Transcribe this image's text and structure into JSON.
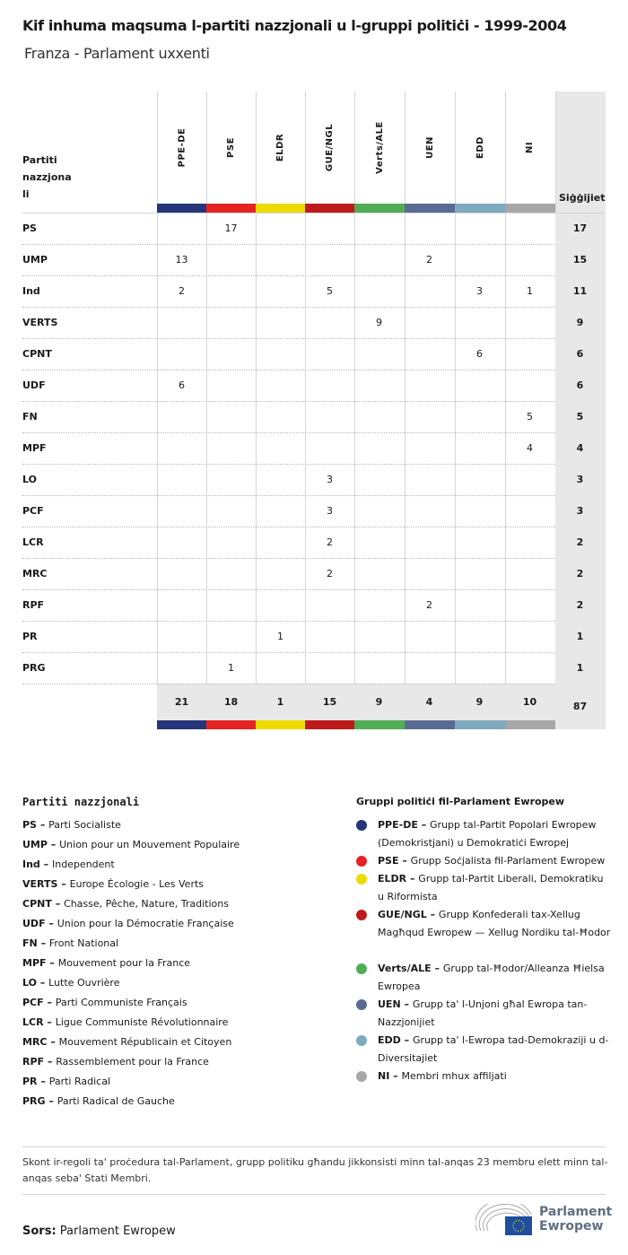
{
  "title": "Kif inhuma maqsuma l-partiti nazzjonali u l-gruppi politiċi - 1999-2004",
  "subtitle": "Franza - Parlament uxxenti",
  "table": {
    "row_header": "Partiti nazzjona li",
    "total_header": "Siġġijiet",
    "groups": [
      {
        "code": "PPE-DE",
        "color": "#263479"
      },
      {
        "code": "PSE",
        "color": "#e42322"
      },
      {
        "code": "ELDR",
        "color": "#ecdb00"
      },
      {
        "code": "GUE/NGL",
        "color": "#be1a1c"
      },
      {
        "code": "Verts/ALE",
        "color": "#50ad56"
      },
      {
        "code": "UEN",
        "color": "#5a6b93"
      },
      {
        "code": "EDD",
        "color": "#7ea9bf"
      },
      {
        "code": "NI",
        "color": "#a7a7a7"
      }
    ],
    "rows": [
      {
        "party": "PS",
        "values": [
          "",
          "17",
          "",
          "",
          "",
          "",
          "",
          ""
        ],
        "total": "17"
      },
      {
        "party": "UMP",
        "values": [
          "13",
          "",
          "",
          "",
          "",
          "2",
          "",
          ""
        ],
        "total": "15"
      },
      {
        "party": "Ind",
        "values": [
          "2",
          "",
          "",
          "5",
          "",
          "",
          "3",
          "1"
        ],
        "total": "11"
      },
      {
        "party": "VERTS",
        "values": [
          "",
          "",
          "",
          "",
          "9",
          "",
          "",
          ""
        ],
        "total": "9"
      },
      {
        "party": "CPNT",
        "values": [
          "",
          "",
          "",
          "",
          "",
          "",
          "6",
          ""
        ],
        "total": "6"
      },
      {
        "party": "UDF",
        "values": [
          "6",
          "",
          "",
          "",
          "",
          "",
          "",
          ""
        ],
        "total": "6"
      },
      {
        "party": "FN",
        "values": [
          "",
          "",
          "",
          "",
          "",
          "",
          "",
          "5"
        ],
        "total": "5"
      },
      {
        "party": "MPF",
        "values": [
          "",
          "",
          "",
          "",
          "",
          "",
          "",
          "4"
        ],
        "total": "4"
      },
      {
        "party": "LO",
        "values": [
          "",
          "",
          "",
          "3",
          "",
          "",
          "",
          ""
        ],
        "total": "3"
      },
      {
        "party": "PCF",
        "values": [
          "",
          "",
          "",
          "3",
          "",
          "",
          "",
          ""
        ],
        "total": "3"
      },
      {
        "party": "LCR",
        "values": [
          "",
          "",
          "",
          "2",
          "",
          "",
          "",
          ""
        ],
        "total": "2"
      },
      {
        "party": "MRC",
        "values": [
          "",
          "",
          "",
          "2",
          "",
          "",
          "",
          ""
        ],
        "total": "2"
      },
      {
        "party": "RPF",
        "values": [
          "",
          "",
          "",
          "",
          "",
          "2",
          "",
          ""
        ],
        "total": "2"
      },
      {
        "party": "PR",
        "values": [
          "",
          "",
          "1",
          "",
          "",
          "",
          "",
          ""
        ],
        "total": "1"
      },
      {
        "party": "PRG",
        "values": [
          "",
          "1",
          "",
          "",
          "",
          "",
          "",
          ""
        ],
        "total": "1"
      }
    ],
    "column_totals": [
      "21",
      "18",
      "1",
      "15",
      "9",
      "4",
      "9",
      "10"
    ],
    "grand_total": "87"
  },
  "legend_parties": {
    "title": "Partiti nazzjonali",
    "items": [
      {
        "code": "PS",
        "name": "Parti Socialiste"
      },
      {
        "code": "UMP",
        "name": "Union pour un Mouvement Populaire"
      },
      {
        "code": "Ind",
        "name": "Independent"
      },
      {
        "code": "VERTS",
        "name": "Europe Écologie - Les Verts"
      },
      {
        "code": "CPNT",
        "name": "Chasse, Pêche, Nature, Traditions"
      },
      {
        "code": "UDF",
        "name": "Union pour la Démocratie Française"
      },
      {
        "code": "FN",
        "name": "Front National"
      },
      {
        "code": "MPF",
        "name": "Mouvement pour la France"
      },
      {
        "code": "LO",
        "name": "Lutte Ouvrière"
      },
      {
        "code": "PCF",
        "name": "Parti Communiste Français"
      },
      {
        "code": "LCR",
        "name": "Ligue Communiste Révolutionnaire"
      },
      {
        "code": "MRC",
        "name": "Mouvement Républicain et Citoyen"
      },
      {
        "code": "RPF",
        "name": "Rassemblement pour la France"
      },
      {
        "code": "PR",
        "name": "Parti Radical"
      },
      {
        "code": "PRG",
        "name": "Parti Radical de Gauche"
      }
    ]
  },
  "legend_groups": {
    "title": "Gruppi politiċi fil-Parlament Ewropew",
    "items": [
      {
        "code": "PPE-DE",
        "name": "Grupp tal-Partit Popolari Ewropew (Demokristjani) u Demokratiċi Ewropej"
      },
      {
        "code": "PSE",
        "name": "Grupp Soċjalista fil-Parlament Ewropew"
      },
      {
        "code": "ELDR",
        "name": "Grupp tal-Partit Liberali, Demokratiku u Riformista"
      },
      {
        "code": "GUE/NGL",
        "name": "Grupp Konfederali tax-Xellug Magħqud Ewropew — Xellug Nordiku tal-Ħodor"
      },
      {
        "code": "Verts/ALE",
        "name": "Grupp tal-Ħodor/Alleanza Ħielsa Ewropea"
      },
      {
        "code": "UEN",
        "name": "Grupp ta' l-Unjoni għal Ewropa tan-Nazzjonijiet"
      },
      {
        "code": "EDD",
        "name": "Grupp ta' l-Ewropa tad-Demokraziji u d-Diversitajiet"
      },
      {
        "code": "NI",
        "name": "Membri mhux affiljati"
      }
    ]
  },
  "note": "Skont ir-regoli ta' proċedura tal-Parlament, grupp politiku għandu jikkonsisti minn tal-anqas 23 membru elett minn tal-anqas seba' Stati Membri.",
  "source_label": "Sors:",
  "source": "Parlament Ewropew",
  "logo_text": "Parlament Ewropew"
}
